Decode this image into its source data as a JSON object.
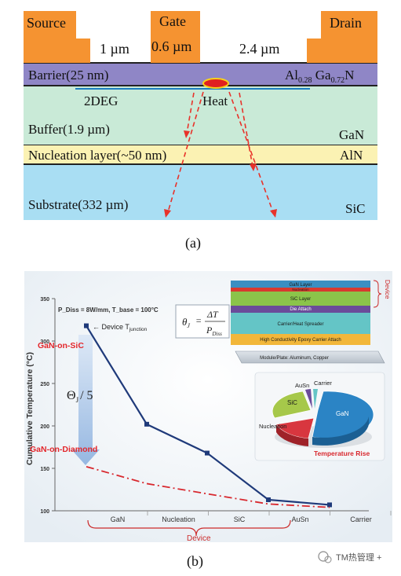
{
  "colors": {
    "contact": "#f59331",
    "barrier": "#8f86c6",
    "buffer": "#c9ead7",
    "nucleation": "#fbf2b3",
    "substrate": "#a9def3",
    "heat_fill": "#e02020",
    "heat_ring": "#f7d21a",
    "arrow": "#e8322a",
    "panel_b_bg": "#eef3f7",
    "gan_sic_line": "#1f3a7a",
    "gan_diamond_line": "#d8282e",
    "gan_sic_label": "#e3262b",
    "annotation_red": "#cc2b2b"
  },
  "panel_a": {
    "source_label": "Source",
    "gate_label": "Gate",
    "gate_length": "0.6 µm",
    "drain_label": "Drain",
    "source_gate_spacing": "1 µm",
    "gate_drain_spacing": "2.4 µm",
    "barrier_label": "Barrier(25 nm)",
    "barrier_material_main_1": "Al",
    "barrier_material_sub_1": "0.28",
    "barrier_material_main_2": " Ga",
    "barrier_material_sub_2": "0.72",
    "barrier_material_main_3": "N",
    "twodeg_label": "2DEG",
    "heat_label": "Heat",
    "buffer_label": "Buffer(1.9 µm)",
    "buffer_material": "GaN",
    "nucleation_label": "Nucleation layer(~50 nm)",
    "nucleation_material": "AlN",
    "substrate_label": "Substrate(332 µm)",
    "substrate_material": "SiC",
    "caption": "(a)"
  },
  "panel_b": {
    "caption": "(b)",
    "conditions_text": "P_Diss = 8W/mm, T_base = 100°C",
    "equation_lhs": "θ",
    "equation_lhs_sub": "J",
    "equation_eq": "=",
    "equation_num": "ΔT",
    "equation_den": "P",
    "equation_den_sub": "Diss",
    "device_tjunction_label": "← Device T",
    "device_tjunction_sub": "junction",
    "gan_on_sic_label": "GaN-on-SiC",
    "gan_on_diamond_label": "GaN-on-Diamond",
    "theta_reduction_label": "Θ",
    "theta_reduction_sub": "J",
    "theta_reduction_suffix": "/ 5",
    "device_bracket_label": "Device",
    "stack_device_label": "Device",
    "stack_layers": [
      "GaN Layer",
      "Nucleation",
      "SiC Layer",
      "Die Attach",
      "Carrier/Heat Spreader",
      "High Conductivity Epoxy Carrier Attach",
      "Module/Plate: Aluminum, Copper"
    ],
    "pie_title": "Temperature Rise",
    "pie_labels": {
      "gan": "GaN",
      "sic": "SiC",
      "nucleation": "Nucleation",
      "ausn": "AuSn",
      "carrier": "Carrier"
    }
  },
  "watermark": "TM热管理 +",
  "chart_data": {
    "type": "line",
    "ylabel": "Cumulative Temperature (°C)",
    "xlabel": "",
    "categories": [
      "GaN",
      "Nucleation",
      "SiC",
      "AuSn",
      "Carrier"
    ],
    "ylim": [
      100,
      350
    ],
    "yticks": [
      100,
      150,
      200,
      250,
      300,
      350
    ],
    "series": [
      {
        "name": "GaN-on-SiC",
        "x": [
          0,
          1,
          2,
          3,
          4
        ],
        "values": [
          318,
          202,
          168,
          113,
          107
        ]
      },
      {
        "name": "GaN-on-Diamond",
        "x": [
          0,
          1,
          2,
          3,
          4
        ],
        "values": [
          152,
          132,
          120,
          108,
          104
        ]
      }
    ]
  }
}
